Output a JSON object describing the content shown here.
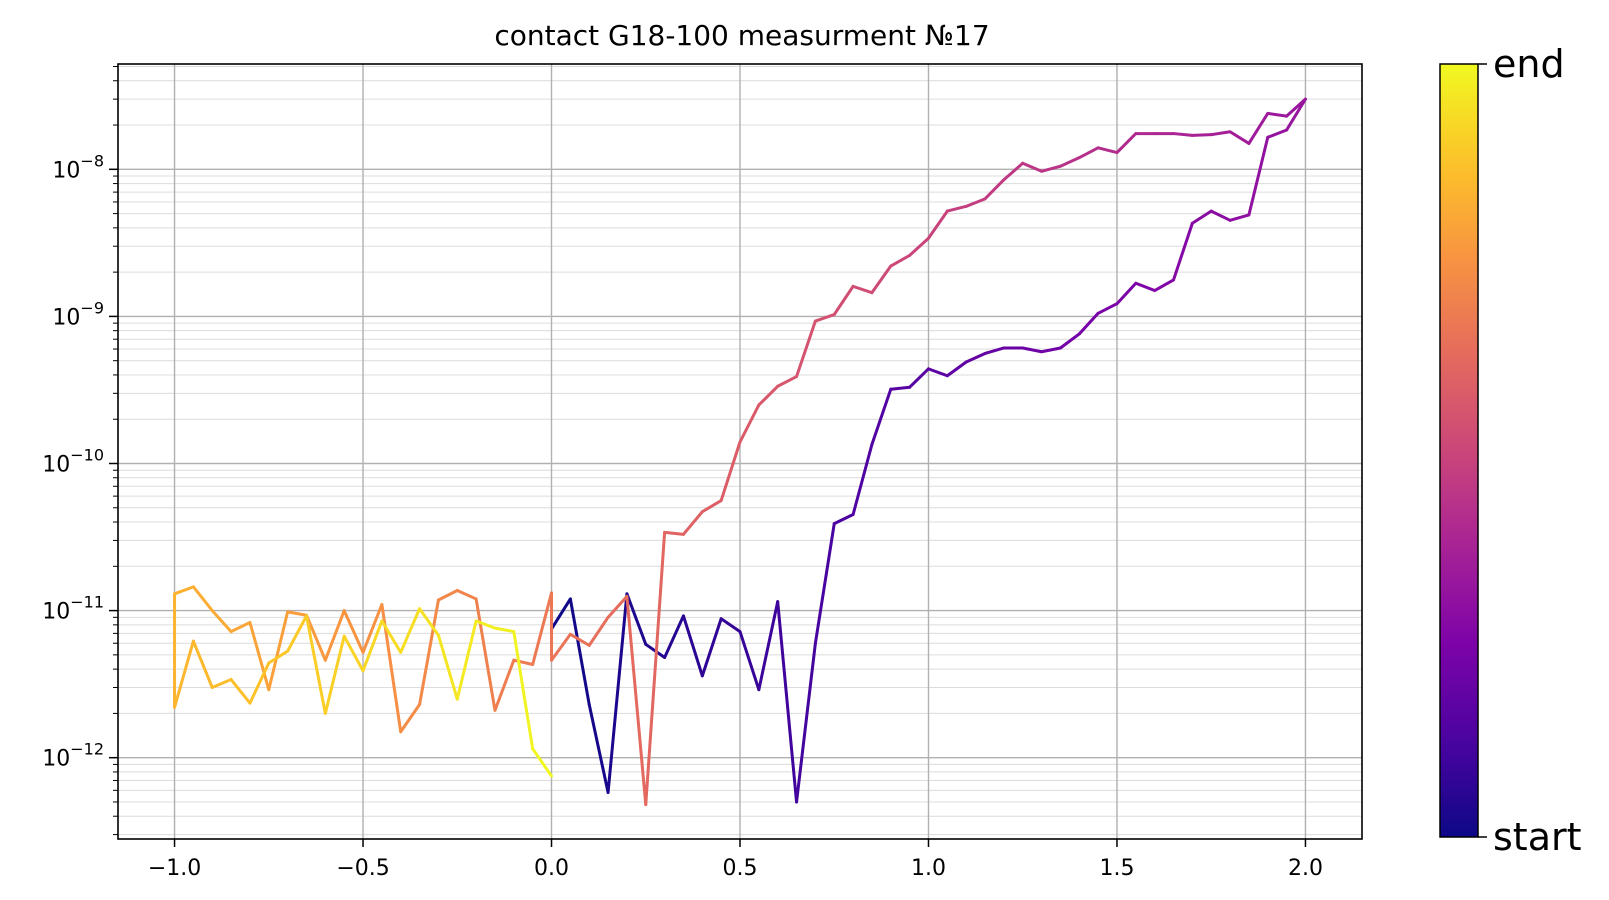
{
  "chart_data": {
    "type": "line",
    "title": "contact G18-100 measurment №17",
    "xlabel": "",
    "ylabel": "",
    "xlim": [
      -1.15,
      2.15
    ],
    "ylim": [
      2.8e-13,
      5.2e-08
    ],
    "yscale": "log",
    "grid": true,
    "xticks": [
      -1.0,
      -0.5,
      0.0,
      0.5,
      1.0,
      1.5,
      2.0
    ],
    "xtick_labels": [
      "−1.0",
      "−0.5",
      "0.0",
      "0.5",
      "1.0",
      "1.5",
      "2.0"
    ],
    "yticks": [
      1e-12,
      1e-11,
      1e-10,
      1e-09,
      1e-08
    ],
    "ytick_labels": [
      {
        "base": "10",
        "exp": "−12"
      },
      {
        "base": "10",
        "exp": "−11"
      },
      {
        "base": "10",
        "exp": "−10"
      },
      {
        "base": "10",
        "exp": "−9"
      },
      {
        "base": "10",
        "exp": "−8"
      }
    ],
    "colormap": "plasma",
    "colorbar": {
      "bottom_label": "start",
      "top_label": "end"
    },
    "x": [
      0.0,
      0.05,
      0.1,
      0.15,
      0.2,
      0.25,
      0.3,
      0.35,
      0.4,
      0.45,
      0.5,
      0.55,
      0.6,
      0.65,
      0.7,
      0.75,
      0.8,
      0.85,
      0.9,
      0.95,
      1.0,
      1.05,
      1.1,
      1.15,
      1.2,
      1.25,
      1.3,
      1.35,
      1.4,
      1.45,
      1.5,
      1.55,
      1.6,
      1.65,
      1.7,
      1.75,
      1.8,
      1.85,
      1.9,
      1.95,
      2.0,
      1.95,
      1.9,
      1.85,
      1.8,
      1.75,
      1.7,
      1.65,
      1.6,
      1.55,
      1.5,
      1.45,
      1.4,
      1.35,
      1.3,
      1.25,
      1.2,
      1.15,
      1.1,
      1.05,
      1.0,
      0.95,
      0.9,
      0.85,
      0.8,
      0.75,
      0.7,
      0.65,
      0.6,
      0.55,
      0.5,
      0.45,
      0.4,
      0.35,
      0.3,
      0.25,
      0.2,
      0.15,
      0.1,
      0.05,
      0.0,
      0.0,
      -0.05,
      -0.1,
      -0.15,
      -0.2,
      -0.25,
      -0.3,
      -0.35,
      -0.4,
      -0.45,
      -0.5,
      -0.55,
      -0.6,
      -0.65,
      -0.7,
      -0.75,
      -0.8,
      -0.85,
      -0.9,
      -0.95,
      -1.0,
      -1.0,
      -0.95,
      -0.9,
      -0.85,
      -0.8,
      -0.75,
      -0.7,
      -0.65,
      -0.6,
      -0.55,
      -0.5,
      -0.45,
      -0.4,
      -0.35,
      -0.3,
      -0.25,
      -0.2,
      -0.15,
      -0.1,
      -0.05,
      0.0
    ],
    "y": [
      7.5e-12,
      1.2e-11,
      2.3e-12,
      5.8e-13,
      1.3e-11,
      5.9e-12,
      4.8e-12,
      9.2e-12,
      3.6e-12,
      8.8e-12,
      7.2e-12,
      2.9e-12,
      1.15e-11,
      5e-13,
      6e-12,
      3.9e-11,
      4.5e-11,
      1.35e-10,
      3.2e-10,
      3.3e-10,
      4.4e-10,
      3.95e-10,
      4.9e-10,
      5.6e-10,
      6.1e-10,
      6.1e-10,
      5.75e-10,
      6.1e-10,
      7.6e-10,
      1.05e-09,
      1.22e-09,
      1.68e-09,
      1.5e-09,
      1.77e-09,
      4.3e-09,
      5.2e-09,
      4.5e-09,
      4.9e-09,
      1.65e-08,
      1.85e-08,
      3e-08,
      2.3e-08,
      2.4e-08,
      1.5e-08,
      1.8e-08,
      1.72e-08,
      1.7e-08,
      1.75e-08,
      1.75e-08,
      1.75e-08,
      1.3e-08,
      1.4e-08,
      1.2e-08,
      1.05e-08,
      9.7e-09,
      1.1e-08,
      8.5e-09,
      6.3e-09,
      5.6e-09,
      5.2e-09,
      3.4e-09,
      2.6e-09,
      2.2e-09,
      1.45e-09,
      1.6e-09,
      1.03e-09,
      9.3e-10,
      3.9e-10,
      3.35e-10,
      2.5e-10,
      1.4e-10,
      5.6e-11,
      4.7e-11,
      3.3e-11,
      3.4e-11,
      4.8e-13,
      1.25e-11,
      9e-12,
      5.8e-12,
      6.9e-12,
      4.6e-12,
      1.32e-11,
      4.3e-12,
      4.6e-12,
      2.1e-12,
      1.2e-11,
      1.37e-11,
      1.18e-11,
      2.3e-12,
      1.5e-12,
      1.1e-11,
      5.2e-12,
      1e-11,
      4.6e-12,
      9.3e-12,
      9.8e-12,
      2.9e-12,
      8.3e-12,
      7.2e-12,
      1e-11,
      1.45e-11,
      1.3e-11,
      2.2e-12,
      6.2e-12,
      3e-12,
      3.4e-12,
      2.35e-12,
      4.4e-12,
      5.3e-12,
      9.2e-12,
      2e-12,
      6.7e-12,
      3.9e-12,
      8.5e-12,
      5.2e-12,
      1.03e-11,
      6.8e-12,
      2.5e-12,
      8.5e-12,
      7.6e-12,
      7.2e-12,
      1.15e-12,
      7.5e-13
    ]
  }
}
